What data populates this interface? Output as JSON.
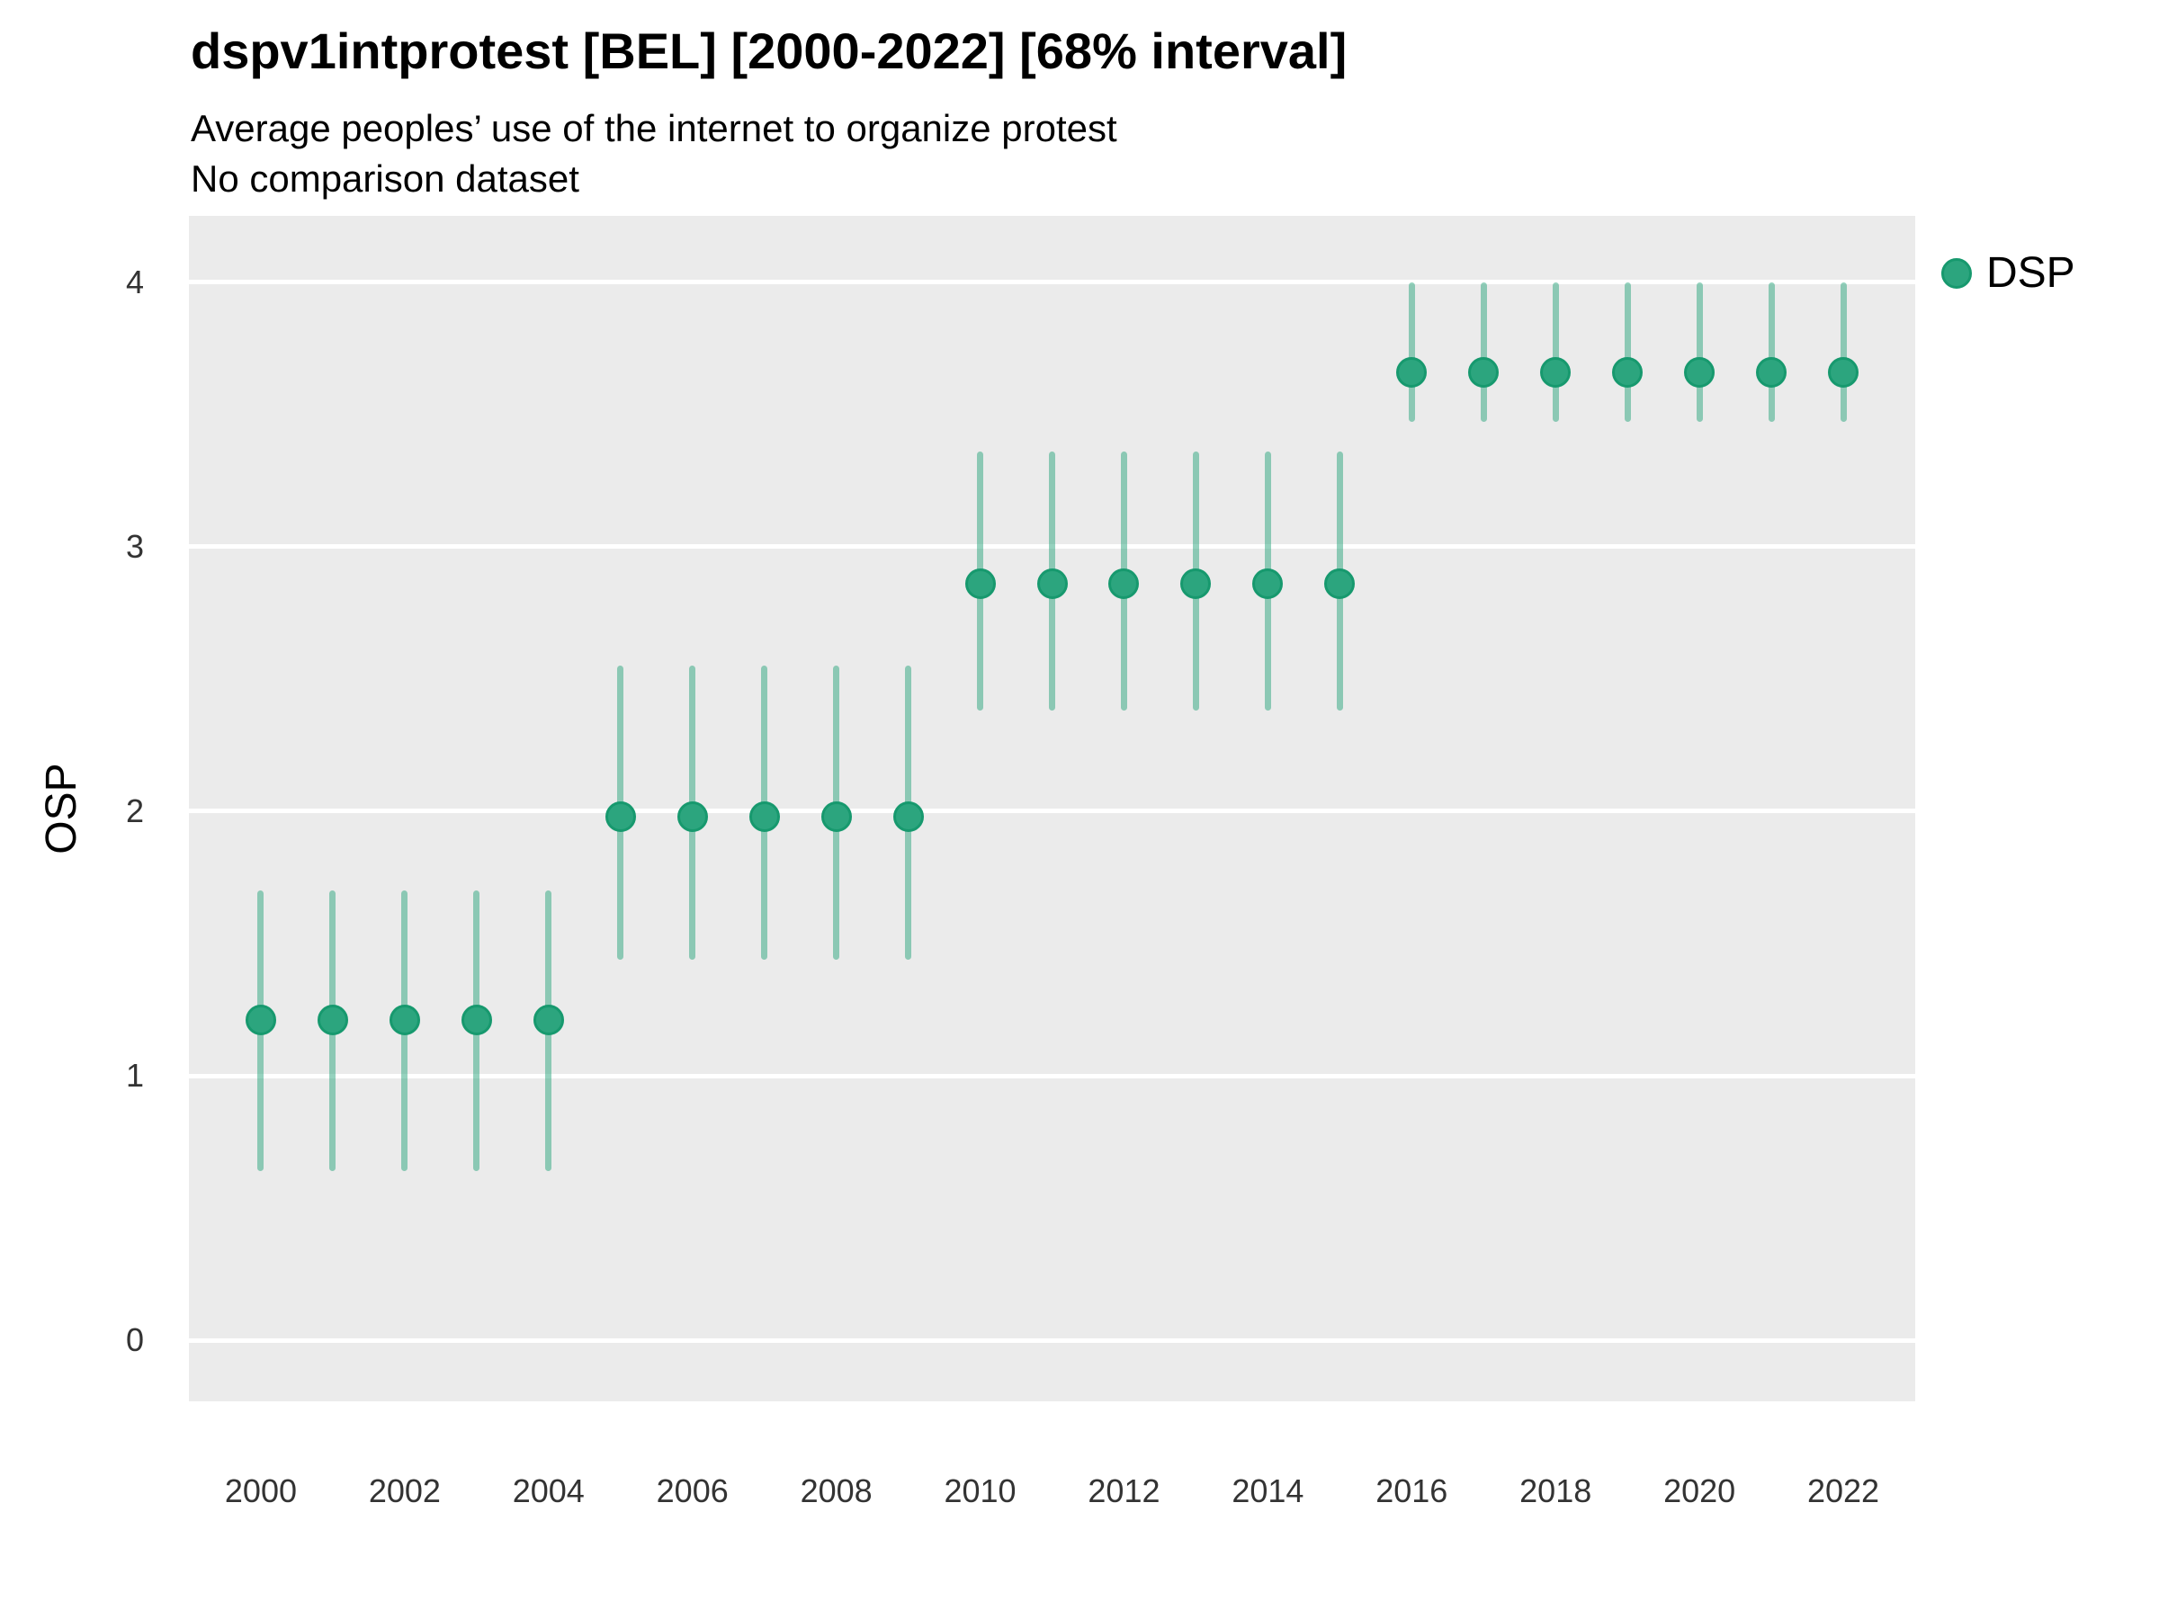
{
  "header": {
    "title": "dspv1intprotest [BEL] [2000-2022] [68% interval]",
    "subtitle1": "Average peoples’ use of the internet to organize protest",
    "subtitle2": "No comparison dataset"
  },
  "axes": {
    "y_title": "OSP",
    "y_ticks": [
      0,
      1,
      2,
      3,
      4
    ],
    "x_ticks": [
      2000,
      2002,
      2004,
      2006,
      2008,
      2010,
      2012,
      2014,
      2016,
      2018,
      2020,
      2022
    ]
  },
  "legend": {
    "label": "DSP"
  },
  "colors": {
    "panel_bg": "#ebebeb",
    "gridline": "#ffffff",
    "point_fill": "#2ca57e",
    "point_stroke": "#17996e",
    "interval_bar": "rgba(44,165,126,0.5)",
    "title_text": "#000000",
    "tick_text": "#333333"
  },
  "chart_data": {
    "type": "pointrange",
    "title": "dspv1intprotest [BEL] [2000-2022] [68% interval]",
    "subtitle": "Average peoples’ use of the internet to organize protest",
    "note": "No comparison dataset",
    "xlabel": "",
    "ylabel": "OSP",
    "xlim": [
      1999,
      2023
    ],
    "ylim": [
      -0.23,
      4.25
    ],
    "grid": "major-horizontal",
    "legend_position": "right-top",
    "interval_level": "68%",
    "series": [
      {
        "name": "DSP",
        "x": [
          2000,
          2001,
          2002,
          2003,
          2004,
          2005,
          2006,
          2007,
          2008,
          2009,
          2010,
          2011,
          2012,
          2013,
          2014,
          2015,
          2016,
          2017,
          2018,
          2019,
          2020,
          2021,
          2022
        ],
        "y": [
          1.21,
          1.21,
          1.21,
          1.21,
          1.21,
          1.98,
          1.98,
          1.98,
          1.98,
          1.98,
          2.86,
          2.86,
          2.86,
          2.86,
          2.86,
          2.86,
          3.66,
          3.66,
          3.66,
          3.66,
          3.66,
          3.66,
          3.66
        ],
        "lo": [
          0.64,
          0.64,
          0.64,
          0.64,
          0.64,
          1.44,
          1.44,
          1.44,
          1.44,
          1.44,
          2.38,
          2.38,
          2.38,
          2.38,
          2.38,
          2.38,
          3.47,
          3.47,
          3.47,
          3.47,
          3.47,
          3.47,
          3.47
        ],
        "hi": [
          1.7,
          1.7,
          1.7,
          1.7,
          1.7,
          2.55,
          2.55,
          2.55,
          2.55,
          2.55,
          3.36,
          3.36,
          3.36,
          3.36,
          3.36,
          3.36,
          4.0,
          4.0,
          4.0,
          4.0,
          4.0,
          4.0,
          4.0
        ]
      }
    ]
  }
}
